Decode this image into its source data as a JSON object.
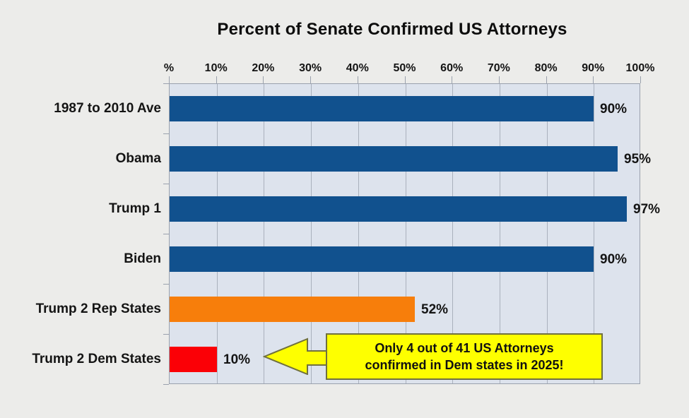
{
  "title": "Percent of Senate Confirmed US Attorneys",
  "callout": {
    "line1": "Only 4 out of 41 US Attorneys",
    "line2": "confirmed in Dem states in 2025!",
    "fill_color": "#feff00",
    "border_color": "#70703f",
    "shape": "left-block-arrow-callout"
  },
  "chart_data": {
    "type": "bar",
    "orientation": "horizontal",
    "title": "Percent of Senate Confirmed US Attorneys",
    "categories": [
      "1987 to 2010 Ave",
      "Obama",
      "Trump 1",
      "Biden",
      "Trump 2 Rep States",
      "Trump 2 Dem States"
    ],
    "values": [
      90,
      95,
      97,
      90,
      52,
      10
    ],
    "value_labels": [
      "90%",
      "95%",
      "97%",
      "90%",
      "52%",
      "10%"
    ],
    "bar_colors": [
      "#11518e",
      "#11518e",
      "#11518e",
      "#11518e",
      "#f77e0b",
      "#fb0006"
    ],
    "x_ticks": [
      "%",
      "10%",
      "20%",
      "30%",
      "40%",
      "50%",
      "60%",
      "70%",
      "80%",
      "90%",
      "100%"
    ],
    "xlim": [
      0,
      100
    ],
    "xlabel": "",
    "ylabel": "",
    "grid": "vertical-major-every-10pct",
    "legend": "none",
    "plot_background": "#dde3ed",
    "page_background": "#ececea",
    "annotation": "Only 4 out of 41 US Attorneys confirmed in Dem states in 2025!"
  }
}
